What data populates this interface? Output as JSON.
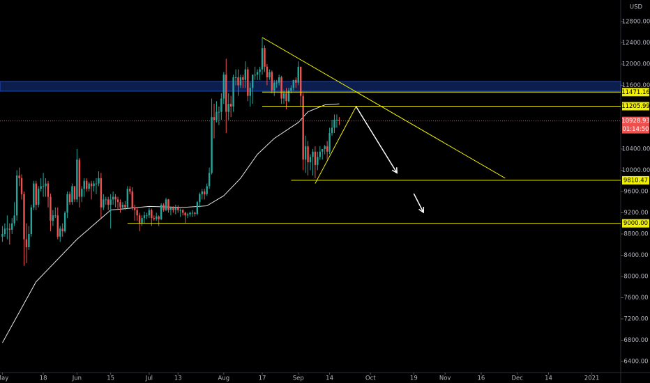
{
  "chart_data": {
    "type": "candlestick",
    "currency": "USD",
    "xlim": [
      "2020-04-30",
      "2021-01-13"
    ],
    "ylim": [
      6190,
      13206
    ],
    "yticks": [
      {
        "value": 12800,
        "label": "12800.00"
      },
      {
        "value": 12400,
        "label": "12400.00"
      },
      {
        "value": 12000,
        "label": "12000.00"
      },
      {
        "value": 11600,
        "label": "11600.00"
      },
      {
        "value": 10400,
        "label": "10400.00"
      },
      {
        "value": 10000,
        "label": "10000.00"
      },
      {
        "value": 9600,
        "label": "9600.00"
      },
      {
        "value": 9200,
        "label": "9200.00"
      },
      {
        "value": 8800,
        "label": "8800.00"
      },
      {
        "value": 8400,
        "label": "8400.00"
      },
      {
        "value": 8000,
        "label": "8000.00"
      },
      {
        "value": 7600,
        "label": "7600.00"
      },
      {
        "value": 7200,
        "label": "7200.00"
      },
      {
        "value": 6800,
        "label": "6800.00"
      },
      {
        "value": 6400,
        "label": "6400.00"
      }
    ],
    "xticks": [
      {
        "value": "2020-05-01",
        "label": "May"
      },
      {
        "value": "2020-05-18",
        "label": "18"
      },
      {
        "value": "2020-06-01",
        "label": "Jun"
      },
      {
        "value": "2020-06-15",
        "label": "15"
      },
      {
        "value": "2020-07-01",
        "label": "Jul"
      },
      {
        "value": "2020-07-13",
        "label": "13"
      },
      {
        "value": "2020-08-01",
        "label": "Aug"
      },
      {
        "value": "2020-08-17",
        "label": "17"
      },
      {
        "value": "2020-09-01",
        "label": "Sep"
      },
      {
        "value": "2020-09-14",
        "label": "14"
      },
      {
        "value": "2020-10-01",
        "label": "Oct"
      },
      {
        "value": "2020-10-19",
        "label": "19"
      },
      {
        "value": "2020-11-01",
        "label": "Nov"
      },
      {
        "value": "2020-11-16",
        "label": "16"
      },
      {
        "value": "2020-12-01",
        "label": "Dec"
      },
      {
        "value": "2020-12-14",
        "label": "14"
      },
      {
        "value": "2021-01-01",
        "label": "2021"
      }
    ],
    "up_color": "#26a69a",
    "down_color": "#ef5350",
    "candles": [
      [
        "2020-05-01",
        8750,
        8950,
        8650,
        8800
      ],
      [
        "2020-05-02",
        8800,
        9000,
        8750,
        8900
      ],
      [
        "2020-05-03",
        8900,
        9150,
        8700,
        8900
      ],
      [
        "2020-05-04",
        8900,
        9000,
        8600,
        8880
      ],
      [
        "2020-05-05",
        8880,
        9100,
        8800,
        9000
      ],
      [
        "2020-05-06",
        9000,
        9400,
        8950,
        9150
      ],
      [
        "2020-05-07",
        9150,
        10000,
        9050,
        9900
      ],
      [
        "2020-05-08",
        9900,
        10050,
        9700,
        9850
      ],
      [
        "2020-05-09",
        9850,
        9920,
        9450,
        9550
      ],
      [
        "2020-05-10",
        9550,
        9600,
        8200,
        8700
      ],
      [
        "2020-05-11",
        8700,
        9000,
        8250,
        8550
      ],
      [
        "2020-05-12",
        8550,
        8950,
        8500,
        8800
      ],
      [
        "2020-05-13",
        8800,
        9350,
        8750,
        9300
      ],
      [
        "2020-05-14",
        9300,
        9800,
        9250,
        9750
      ],
      [
        "2020-05-15",
        9750,
        9800,
        9250,
        9350
      ],
      [
        "2020-05-16",
        9350,
        9700,
        9300,
        9650
      ],
      [
        "2020-05-17",
        9650,
        9850,
        9600,
        9700
      ],
      [
        "2020-05-18",
        9700,
        9950,
        9500,
        9700
      ],
      [
        "2020-05-19",
        9700,
        9850,
        9500,
        9750
      ],
      [
        "2020-05-20",
        9750,
        9800,
        9300,
        9500
      ],
      [
        "2020-05-21",
        9500,
        9560,
        8850,
        9050
      ],
      [
        "2020-05-22",
        9050,
        9250,
        8950,
        9150
      ],
      [
        "2020-05-23",
        9150,
        9300,
        9100,
        9150
      ],
      [
        "2020-05-24",
        9150,
        9300,
        8700,
        8750
      ],
      [
        "2020-05-25",
        8750,
        8950,
        8650,
        8900
      ],
      [
        "2020-05-26",
        8900,
        9000,
        8750,
        8850
      ],
      [
        "2020-05-27",
        8850,
        9230,
        8820,
        9200
      ],
      [
        "2020-05-28",
        9200,
        9600,
        9100,
        9550
      ],
      [
        "2020-05-29",
        9550,
        9600,
        9350,
        9400
      ],
      [
        "2020-05-30",
        9400,
        9750,
        9350,
        9700
      ],
      [
        "2020-05-31",
        9700,
        9700,
        9400,
        9450
      ],
      [
        "2020-06-01",
        9450,
        10400,
        9400,
        10200
      ],
      [
        "2020-06-02",
        10200,
        10230,
        9300,
        9500
      ],
      [
        "2020-06-03",
        9500,
        9700,
        9400,
        9650
      ],
      [
        "2020-06-04",
        9650,
        9850,
        9500,
        9800
      ],
      [
        "2020-06-05",
        9800,
        9850,
        9600,
        9650
      ],
      [
        "2020-06-06",
        9650,
        9780,
        9600,
        9750
      ],
      [
        "2020-06-07",
        9750,
        9800,
        9450,
        9700
      ],
      [
        "2020-06-08",
        9700,
        9800,
        9600,
        9750
      ],
      [
        "2020-06-09",
        9750,
        9850,
        9550,
        9750
      ],
      [
        "2020-06-10",
        9750,
        9980,
        9700,
        9850
      ],
      [
        "2020-06-11",
        9850,
        9950,
        9100,
        9300
      ],
      [
        "2020-06-12",
        9300,
        9550,
        9250,
        9450
      ],
      [
        "2020-06-13",
        9450,
        9500,
        9350,
        9450
      ],
      [
        "2020-06-14",
        9450,
        9500,
        9250,
        9350
      ],
      [
        "2020-06-15",
        9350,
        9550,
        8900,
        9450
      ],
      [
        "2020-06-16",
        9450,
        9600,
        9350,
        9500
      ],
      [
        "2020-06-17",
        9500,
        9550,
        9300,
        9450
      ],
      [
        "2020-06-18",
        9450,
        9500,
        9250,
        9400
      ],
      [
        "2020-06-19",
        9400,
        9450,
        9200,
        9300
      ],
      [
        "2020-06-20",
        9300,
        9400,
        9250,
        9350
      ],
      [
        "2020-06-21",
        9350,
        9420,
        9250,
        9300
      ],
      [
        "2020-06-22",
        9300,
        9700,
        9280,
        9650
      ],
      [
        "2020-06-23",
        9650,
        9700,
        9550,
        9600
      ],
      [
        "2020-06-24",
        9600,
        9680,
        9250,
        9300
      ],
      [
        "2020-06-25",
        9300,
        9350,
        9050,
        9250
      ],
      [
        "2020-06-26",
        9250,
        9300,
        9050,
        9150
      ],
      [
        "2020-06-27",
        9150,
        9200,
        8850,
        9000
      ],
      [
        "2020-06-28",
        9000,
        9150,
        8950,
        9100
      ],
      [
        "2020-06-29",
        9100,
        9220,
        9000,
        9150
      ],
      [
        "2020-06-30",
        9150,
        9200,
        9080,
        9150
      ],
      [
        "2020-07-01",
        9150,
        9300,
        9100,
        9250
      ],
      [
        "2020-07-02",
        9250,
        9280,
        8950,
        9100
      ],
      [
        "2020-07-03",
        9100,
        9150,
        9050,
        9080
      ],
      [
        "2020-07-04",
        9080,
        9200,
        9050,
        9130
      ],
      [
        "2020-07-05",
        9130,
        9150,
        8950,
        9080
      ],
      [
        "2020-07-06",
        9080,
        9380,
        9060,
        9350
      ],
      [
        "2020-07-07",
        9350,
        9380,
        9220,
        9250
      ],
      [
        "2020-07-08",
        9250,
        9480,
        9230,
        9450
      ],
      [
        "2020-07-09",
        9450,
        9460,
        9200,
        9250
      ],
      [
        "2020-07-10",
        9250,
        9320,
        9150,
        9300
      ],
      [
        "2020-07-11",
        9300,
        9320,
        9200,
        9250
      ],
      [
        "2020-07-12",
        9250,
        9350,
        9170,
        9300
      ],
      [
        "2020-07-13",
        9300,
        9340,
        9200,
        9250
      ],
      [
        "2020-07-14",
        9250,
        9280,
        9120,
        9250
      ],
      [
        "2020-07-15",
        9250,
        9270,
        9150,
        9200
      ],
      [
        "2020-07-16",
        9200,
        9220,
        9000,
        9150
      ],
      [
        "2020-07-17",
        9150,
        9200,
        9100,
        9170
      ],
      [
        "2020-07-18",
        9170,
        9220,
        9130,
        9200
      ],
      [
        "2020-07-19",
        9200,
        9250,
        9120,
        9200
      ],
      [
        "2020-07-20",
        9200,
        9220,
        9130,
        9180
      ],
      [
        "2020-07-21",
        9180,
        9420,
        9150,
        9400
      ],
      [
        "2020-07-22",
        9400,
        9580,
        9300,
        9550
      ],
      [
        "2020-07-23",
        9550,
        9650,
        9450,
        9600
      ],
      [
        "2020-07-24",
        9600,
        9650,
        9450,
        9550
      ],
      [
        "2020-07-25",
        9550,
        9750,
        9520,
        9700
      ],
      [
        "2020-07-26",
        9700,
        10050,
        9650,
        9950
      ],
      [
        "2020-07-27",
        9950,
        11350,
        9920,
        11000
      ],
      [
        "2020-07-28",
        11000,
        11250,
        10600,
        10950
      ],
      [
        "2020-07-29",
        10950,
        11300,
        10900,
        11100
      ],
      [
        "2020-07-30",
        11100,
        11200,
        10850,
        11100
      ],
      [
        "2020-07-31",
        11100,
        11450,
        10950,
        11350
      ],
      [
        "2020-08-01",
        11350,
        11850,
        11250,
        11800
      ],
      [
        "2020-08-02",
        11800,
        12100,
        10700,
        11100
      ],
      [
        "2020-08-03",
        11100,
        11450,
        10950,
        11250
      ],
      [
        "2020-08-04",
        11250,
        11400,
        11000,
        11200
      ],
      [
        "2020-08-05",
        11200,
        11800,
        11100,
        11750
      ],
      [
        "2020-08-06",
        11750,
        11900,
        11600,
        11750
      ],
      [
        "2020-08-07",
        11750,
        11900,
        11400,
        11600
      ],
      [
        "2020-08-08",
        11600,
        11800,
        11550,
        11750
      ],
      [
        "2020-08-09",
        11750,
        11800,
        11550,
        11700
      ],
      [
        "2020-08-10",
        11700,
        12050,
        11550,
        11900
      ],
      [
        "2020-08-11",
        11900,
        11950,
        11300,
        11400
      ],
      [
        "2020-08-12",
        11400,
        11650,
        11200,
        11550
      ],
      [
        "2020-08-13",
        11550,
        11800,
        11250,
        11800
      ],
      [
        "2020-08-14",
        11800,
        11950,
        11700,
        11800
      ],
      [
        "2020-08-15",
        11800,
        11900,
        11700,
        11850
      ],
      [
        "2020-08-16",
        11850,
        11950,
        11700,
        11900
      ],
      [
        "2020-08-17",
        11900,
        12500,
        11800,
        12300
      ],
      [
        "2020-08-18",
        12300,
        12350,
        11850,
        11950
      ],
      [
        "2020-08-19",
        11950,
        12000,
        11600,
        11750
      ],
      [
        "2020-08-20",
        11750,
        11900,
        11700,
        11850
      ],
      [
        "2020-08-21",
        11850,
        11880,
        11450,
        11500
      ],
      [
        "2020-08-22",
        11500,
        11700,
        11400,
        11650
      ],
      [
        "2020-08-23",
        11650,
        11700,
        11550,
        11650
      ],
      [
        "2020-08-24",
        11650,
        11800,
        11600,
        11750
      ],
      [
        "2020-08-25",
        11750,
        11780,
        11250,
        11350
      ],
      [
        "2020-08-26",
        11350,
        11500,
        11250,
        11450
      ],
      [
        "2020-08-27",
        11450,
        11550,
        11150,
        11300
      ],
      [
        "2020-08-28",
        11300,
        11550,
        11280,
        11500
      ],
      [
        "2020-08-29",
        11500,
        11600,
        11450,
        11550
      ],
      [
        "2020-08-30",
        11550,
        11700,
        11500,
        11700
      ],
      [
        "2020-08-31",
        11700,
        11750,
        11550,
        11650
      ],
      [
        "2020-09-01",
        11650,
        12050,
        11600,
        11950
      ],
      [
        "2020-09-02",
        11950,
        11950,
        11200,
        11400
      ],
      [
        "2020-09-03",
        11400,
        11450,
        10000,
        10200
      ],
      [
        "2020-09-04",
        10200,
        10650,
        9950,
        10450
      ],
      [
        "2020-09-05",
        10450,
        10550,
        9900,
        10150
      ],
      [
        "2020-09-06",
        10150,
        10300,
        10000,
        10250
      ],
      [
        "2020-09-07",
        10250,
        10400,
        9900,
        10350
      ],
      [
        "2020-09-08",
        10350,
        10450,
        9850,
        10100
      ],
      [
        "2020-09-09",
        10100,
        10350,
        10000,
        10250
      ],
      [
        "2020-09-10",
        10250,
        10450,
        10200,
        10350
      ],
      [
        "2020-09-11",
        10350,
        10400,
        10200,
        10400
      ],
      [
        "2020-09-12",
        10400,
        10480,
        10300,
        10450
      ],
      [
        "2020-09-13",
        10450,
        10550,
        10200,
        10350
      ],
      [
        "2020-09-14",
        10350,
        10800,
        10300,
        10700
      ],
      [
        "2020-09-15",
        10700,
        10950,
        10650,
        10800
      ],
      [
        "2020-09-16",
        10800,
        11050,
        10700,
        10950
      ],
      [
        "2020-09-17",
        10950,
        11050,
        10800,
        10950
      ],
      [
        "2020-09-18",
        10950,
        11000,
        10850,
        10928.93
      ]
    ],
    "moving_average": {
      "color": "#e8e8e8",
      "x": [
        "2020-05-01",
        "2020-05-15",
        "2020-06-01",
        "2020-06-15",
        "2020-07-01",
        "2020-07-15",
        "2020-07-25",
        "2020-08-01",
        "2020-08-08",
        "2020-08-15",
        "2020-08-22",
        "2020-09-01",
        "2020-09-05",
        "2020-09-12",
        "2020-09-18"
      ],
      "values": [
        6750,
        7900,
        8700,
        9250,
        9320,
        9300,
        9330,
        9520,
        9850,
        10300,
        10600,
        10900,
        11100,
        11230,
        11250
      ]
    },
    "zone": {
      "from": 11488,
      "to": 11672,
      "color": "#2962ff"
    },
    "levels_color": "#f0f000",
    "levels": [
      {
        "price": 11471.16,
        "from": "2020-08-17"
      },
      {
        "price": 11205.99,
        "from": "2020-08-17"
      },
      {
        "price": 9810.47,
        "from": "2020-08-29"
      },
      {
        "price": {
          "value": 9000,
          "label": "9000.00"
        },
        "from": "2020-06-22"
      }
    ],
    "trendlines": [
      {
        "from": [
          "2020-08-17",
          12500
        ],
        "to": [
          "2020-11-26",
          9850
        ]
      },
      {
        "from": [
          "2020-09-08",
          9750
        ],
        "to": [
          "2020-09-25",
          11200
        ]
      }
    ],
    "arrows": [
      {
        "from": [
          "2020-09-25",
          11200
        ],
        "to": [
          "2020-10-12",
          9950
        ]
      },
      {
        "from": [
          "2020-10-19",
          9560
        ],
        "to": [
          "2020-10-23",
          9206
        ]
      }
    ],
    "last_price": 10928.93,
    "countdown": "01:14:50"
  }
}
